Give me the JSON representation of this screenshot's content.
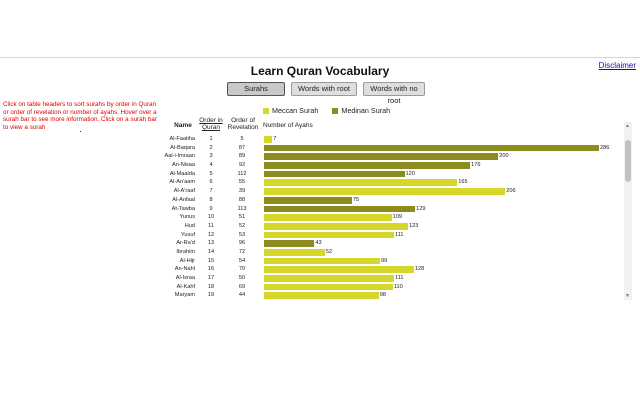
{
  "header": {
    "title": "Learn Quran Vocabulary",
    "disclaimer": "Disclaimer"
  },
  "tabs": [
    {
      "label": "Surahs",
      "active": true
    },
    {
      "label": "Words with root",
      "active": false
    },
    {
      "label": "Words with no root",
      "active": false
    }
  ],
  "hint": "Click on table headers to sort surahs by order in Quran or order of revelation or number of ayahs. Hover over a surah bar to see more information. Click on a surah bar to view a surah",
  "legend": {
    "meccan": {
      "label": "Meccan Surah",
      "color": "#d7d72b"
    },
    "medinan": {
      "label": "Medinan Surah",
      "color": "#8c8c1e"
    }
  },
  "table": {
    "headers": {
      "name": "Name",
      "order": "Order in Quran",
      "revelation": "Order of Revelation",
      "ayahs": "Number of Ayahs"
    },
    "rows": [
      {
        "name": "Al-Faatiha",
        "order": "1",
        "revelation": "5",
        "ayahs": 7,
        "type": "meccan"
      },
      {
        "name": "Al-Baqara",
        "order": "2",
        "revelation": "87",
        "ayahs": 286,
        "type": "medinan"
      },
      {
        "name": "Aal-i-Imraan",
        "order": "3",
        "revelation": "89",
        "ayahs": 200,
        "type": "medinan"
      },
      {
        "name": "An-Nisaa",
        "order": "4",
        "revelation": "92",
        "ayahs": 176,
        "type": "medinan"
      },
      {
        "name": "Al-Maaida",
        "order": "5",
        "revelation": "112",
        "ayahs": 120,
        "type": "medinan"
      },
      {
        "name": "Al-An'aam",
        "order": "6",
        "revelation": "55",
        "ayahs": 165,
        "type": "meccan"
      },
      {
        "name": "Al-A'raaf",
        "order": "7",
        "revelation": "39",
        "ayahs": 206,
        "type": "meccan"
      },
      {
        "name": "Al-Anfaal",
        "order": "8",
        "revelation": "88",
        "ayahs": 75,
        "type": "medinan"
      },
      {
        "name": "At-Tawba",
        "order": "9",
        "revelation": "113",
        "ayahs": 129,
        "type": "medinan"
      },
      {
        "name": "Yunus",
        "order": "10",
        "revelation": "51",
        "ayahs": 109,
        "type": "meccan"
      },
      {
        "name": "Hud",
        "order": "11",
        "revelation": "52",
        "ayahs": 123,
        "type": "meccan"
      },
      {
        "name": "Yusuf",
        "order": "12",
        "revelation": "53",
        "ayahs": 111,
        "type": "meccan"
      },
      {
        "name": "Ar-Ra'd",
        "order": "13",
        "revelation": "96",
        "ayahs": 43,
        "type": "medinan"
      },
      {
        "name": "Ibrahim",
        "order": "14",
        "revelation": "72",
        "ayahs": 52,
        "type": "meccan"
      },
      {
        "name": "Al-Hijr",
        "order": "15",
        "revelation": "54",
        "ayahs": 99,
        "type": "meccan"
      },
      {
        "name": "An-Nahl",
        "order": "16",
        "revelation": "70",
        "ayahs": 128,
        "type": "meccan"
      },
      {
        "name": "Al-Israa",
        "order": "17",
        "revelation": "50",
        "ayahs": 111,
        "type": "meccan"
      },
      {
        "name": "Al-Kahf",
        "order": "18",
        "revelation": "69",
        "ayahs": 110,
        "type": "meccan"
      },
      {
        "name": "Maryam",
        "order": "19",
        "revelation": "44",
        "ayahs": 98,
        "type": "meccan"
      }
    ]
  }
}
